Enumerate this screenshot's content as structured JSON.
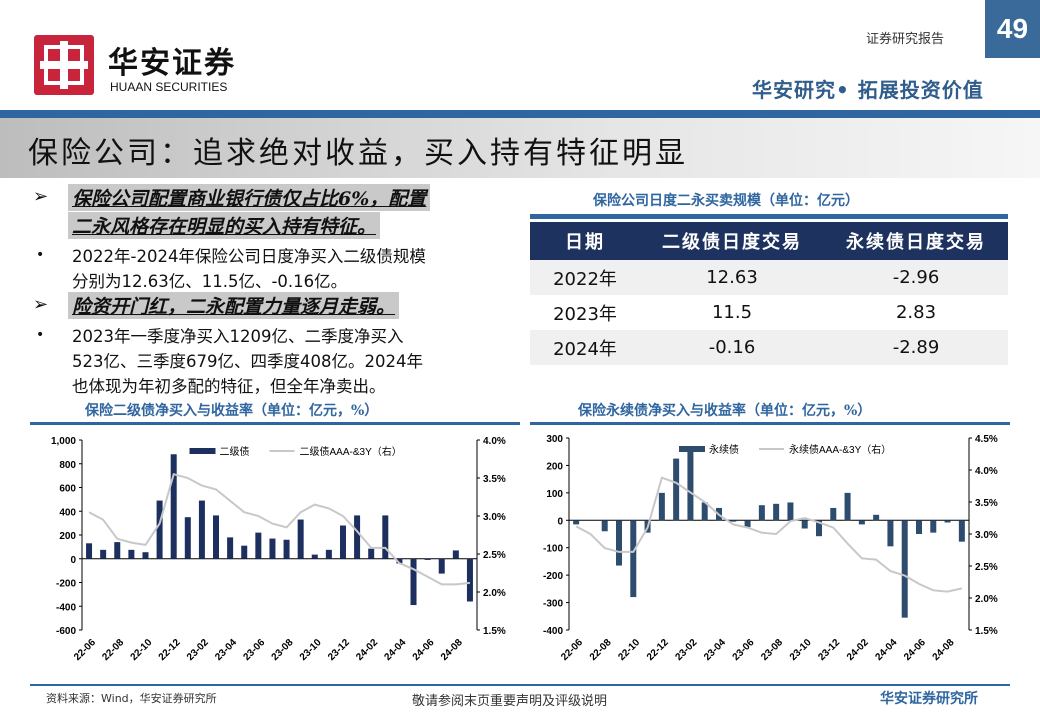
{
  "header": {
    "brand_cn": "华安证券",
    "brand_en": "HUAAN SECURITIES",
    "report_type": "证券研究报告",
    "page_number": "49",
    "slogan": "华安研究• 拓展投资价值",
    "accent": "#2f66a0",
    "logo_color": "#c8243c"
  },
  "title": "保险公司：追求绝对收益，买入持有特征明显",
  "points": [
    {
      "heading_1": "保险公司配置商业银行债仅占比6%，配置",
      "heading_2": "二永风格存在明显的买入持有特征。",
      "body": [
        "2022年-2024年保险公司日度净买入二级债规模",
        "分别为12.63亿、11.5亿、-0.16亿。"
      ]
    },
    {
      "heading_1": "险资开门红，二永配置力量逐月走弱。",
      "body": [
        "2023年一季度净买入1209亿、二季度净买入",
        "523亿、三季度679亿、四季度408亿。2024年",
        "也体现为年初多配的特征，但全年净卖出。"
      ]
    }
  ],
  "table": {
    "caption": "保险公司日度二永买卖规模（单位：亿元）",
    "headers": [
      "日期",
      "二级债日度交易",
      "永续债日度交易"
    ],
    "rows": [
      [
        "2022年",
        "12.63",
        "-2.96"
      ],
      [
        "2023年",
        "11.5",
        "2.83"
      ],
      [
        "2024年",
        "-0.16",
        "-2.89"
      ]
    ]
  },
  "chart_data": [
    {
      "type": "bar+line",
      "title": "保险二级债净买入与收益率（单位：亿元，%）",
      "categories": [
        "22-06",
        "22-07",
        "22-08",
        "22-09",
        "22-10",
        "22-11",
        "22-12",
        "23-01",
        "23-02",
        "23-03",
        "23-04",
        "23-05",
        "23-06",
        "23-07",
        "23-08",
        "23-09",
        "23-10",
        "23-11",
        "23-12",
        "24-01",
        "24-02",
        "24-03",
        "24-04",
        "24-05",
        "24-06",
        "24-07",
        "24-08",
        "24-09"
      ],
      "tick_labels": [
        "22-06",
        "22-08",
        "22-10",
        "22-12",
        "23-02",
        "23-04",
        "23-06",
        "23-08",
        "23-10",
        "23-12",
        "24-02",
        "24-04",
        "24-06",
        "24-08"
      ],
      "series": [
        {
          "name": "二级债",
          "axis": "left",
          "type": "bar",
          "color": "#1c2f5e",
          "values": [
            130,
            75,
            140,
            75,
            55,
            490,
            880,
            350,
            490,
            365,
            180,
            110,
            220,
            170,
            160,
            330,
            35,
            75,
            280,
            365,
            85,
            365,
            -40,
            -390,
            -10,
            -125,
            70,
            -360
          ]
        },
        {
          "name": "二级债AAA-&3Y（右）",
          "axis": "right",
          "type": "line",
          "color": "#c8c8c8",
          "values": [
            3.05,
            2.95,
            2.7,
            2.65,
            2.62,
            2.9,
            3.55,
            3.5,
            3.4,
            3.35,
            3.2,
            3.05,
            3.0,
            2.9,
            2.85,
            3.05,
            3.15,
            3.1,
            3.0,
            2.8,
            2.58,
            2.58,
            2.38,
            2.3,
            2.2,
            2.1,
            2.1,
            2.12
          ]
        }
      ],
      "ylim": [
        -600,
        1000
      ],
      "yticks": [
        "1,000",
        "800",
        "600",
        "400",
        "200",
        "0",
        "-200",
        "-400",
        "-600"
      ],
      "y2lim": [
        1.5,
        4.0
      ],
      "y2ticks": [
        "4.0%",
        "3.5%",
        "3.0%",
        "2.5%",
        "2.0%",
        "1.5%"
      ],
      "legend": "top-center",
      "grid": false
    },
    {
      "type": "bar+line",
      "title": "保险永续债净买入与收益率（单位：亿元，%）",
      "categories": [
        "22-06",
        "22-07",
        "22-08",
        "22-09",
        "22-10",
        "22-11",
        "22-12",
        "23-01",
        "23-02",
        "23-03",
        "23-04",
        "23-05",
        "23-06",
        "23-07",
        "23-08",
        "23-09",
        "23-10",
        "23-11",
        "23-12",
        "24-01",
        "24-02",
        "24-03",
        "24-04",
        "24-05",
        "24-06",
        "24-07",
        "24-08",
        "24-09"
      ],
      "tick_labels": [
        "22-06",
        "22-08",
        "22-10",
        "22-12",
        "23-02",
        "23-04",
        "23-06",
        "23-08",
        "23-10",
        "23-12",
        "24-02",
        "24-04",
        "24-06",
        "24-08"
      ],
      "series": [
        {
          "name": "永续债",
          "axis": "left",
          "type": "bar",
          "color": "#2e4d6e",
          "values": [
            -15,
            0,
            -40,
            -165,
            -280,
            -45,
            100,
            225,
            250,
            65,
            45,
            -5,
            -25,
            55,
            60,
            65,
            -30,
            -58,
            45,
            100,
            -15,
            20,
            -95,
            -355,
            -50,
            -45,
            -8,
            -78
          ]
        },
        {
          "name": "永续债AAA-&3Y（右）",
          "axis": "right",
          "type": "line",
          "color": "#c8c8c8",
          "values": [
            3.12,
            3.0,
            2.78,
            2.72,
            2.72,
            3.1,
            3.88,
            3.8,
            3.65,
            3.5,
            3.3,
            3.15,
            3.1,
            3.02,
            3.0,
            3.2,
            3.25,
            3.18,
            3.1,
            2.85,
            2.62,
            2.6,
            2.42,
            2.35,
            2.22,
            2.12,
            2.1,
            2.15
          ]
        }
      ],
      "ylim": [
        -400,
        300
      ],
      "yticks": [
        "300",
        "200",
        "100",
        "0",
        "-100",
        "-200",
        "-300",
        "-400"
      ],
      "y2lim": [
        1.5,
        4.5
      ],
      "y2ticks": [
        "4.5%",
        "4.0%",
        "3.5%",
        "3.0%",
        "2.5%",
        "2.0%",
        "1.5%"
      ],
      "legend": "top-center",
      "grid": false
    }
  ],
  "footer": {
    "source": "资料来源：Wind，华安证券研究所",
    "disclaimer": "敬请参阅末页重要声明及评级说明",
    "org": "华安证券研究所"
  }
}
